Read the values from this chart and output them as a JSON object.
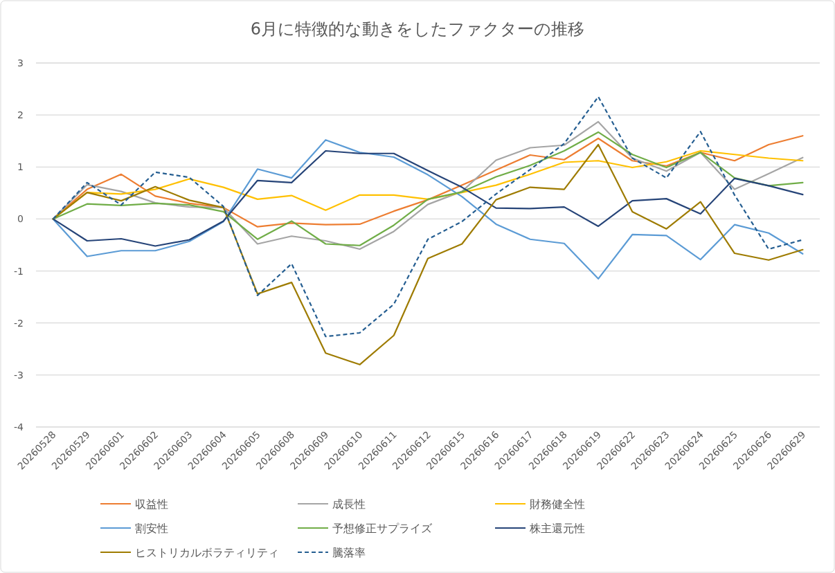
{
  "chart_data": {
    "type": "line",
    "title": "6月に特徴的な動きをしたファクターの推移",
    "categories": [
      "20260528",
      "20260529",
      "20260601",
      "20260602",
      "20260603",
      "20260604",
      "20260605",
      "20260608",
      "20260609",
      "20260610",
      "20260611",
      "20260612",
      "20260615",
      "20260616",
      "20260617",
      "20260618",
      "20260619",
      "20260622",
      "20260623",
      "20260624",
      "20260625",
      "20260626",
      "20260629"
    ],
    "ylim": [
      -4,
      3
    ],
    "yticks": [
      -4,
      -3,
      -2,
      -1,
      0,
      1,
      2,
      3
    ],
    "grid": "y",
    "legend": "bottom",
    "marker": "none",
    "series": [
      {
        "name": "収益性",
        "color": "#ed7d31",
        "values": [
          0,
          0.57,
          0.86,
          0.44,
          0.3,
          0.22,
          -0.15,
          -0.08,
          -0.11,
          -0.1,
          0.15,
          0.37,
          0.65,
          0.94,
          1.23,
          1.14,
          1.55,
          1.12,
          1.02,
          1.28,
          1.12,
          1.43,
          1.6
        ]
      },
      {
        "name": "成長性",
        "color": "#a5a5a5",
        "values": [
          0,
          0.66,
          0.53,
          0.31,
          0.23,
          0.22,
          -0.48,
          -0.33,
          -0.42,
          -0.58,
          -0.24,
          0.28,
          0.53,
          1.13,
          1.37,
          1.42,
          1.87,
          1.17,
          0.92,
          1.28,
          0.57,
          0.87,
          1.18
        ]
      },
      {
        "name": "財務健全性",
        "color": "#ffc000",
        "values": [
          0,
          0.51,
          0.48,
          0.57,
          0.77,
          0.61,
          0.38,
          0.45,
          0.17,
          0.46,
          0.46,
          0.38,
          0.51,
          0.65,
          0.86,
          1.09,
          1.12,
          0.99,
          1.1,
          1.31,
          1.24,
          1.17,
          1.12
        ]
      },
      {
        "name": "割安性",
        "color": "#5b9bd5",
        "values": [
          0,
          -0.72,
          -0.61,
          -0.61,
          -0.43,
          -0.05,
          0.96,
          0.79,
          1.52,
          1.28,
          1.19,
          0.85,
          0.43,
          -0.1,
          -0.39,
          -0.47,
          -1.15,
          -0.3,
          -0.32,
          -0.78,
          -0.11,
          -0.27,
          -0.67
        ]
      },
      {
        "name": "予想修正サプライズ",
        "color": "#70ad47",
        "values": [
          0,
          0.29,
          0.26,
          0.3,
          0.27,
          0.14,
          -0.39,
          -0.04,
          -0.48,
          -0.51,
          -0.12,
          0.38,
          0.52,
          0.81,
          1.03,
          1.31,
          1.67,
          1.24,
          0.99,
          1.28,
          0.79,
          0.64,
          0.7
        ]
      },
      {
        "name": "株主還元性",
        "color": "#264478",
        "values": [
          0,
          -0.42,
          -0.38,
          -0.52,
          -0.4,
          -0.04,
          0.74,
          0.7,
          1.31,
          1.26,
          1.26,
          0.93,
          0.61,
          0.21,
          0.2,
          0.23,
          -0.14,
          0.35,
          0.39,
          0.1,
          0.78,
          0.64,
          0.47
        ]
      },
      {
        "name": "ヒストリカルボラティリティ",
        "color": "#9e7b00",
        "values": [
          0,
          0.51,
          0.35,
          0.62,
          0.36,
          0.22,
          -1.44,
          -1.22,
          -2.58,
          -2.8,
          -2.24,
          -0.76,
          -0.48,
          0.37,
          0.61,
          0.57,
          1.43,
          0.14,
          -0.19,
          0.33,
          -0.66,
          -0.79,
          -0.59
        ]
      },
      {
        "name": "騰落率",
        "color": "#255e91",
        "line_style": "dashed",
        "values": [
          0,
          0.7,
          0.27,
          0.9,
          0.8,
          0.24,
          -1.47,
          -0.86,
          -2.26,
          -2.19,
          -1.64,
          -0.39,
          -0.05,
          0.48,
          0.95,
          1.45,
          2.35,
          1.17,
          0.79,
          1.68,
          0.46,
          -0.58,
          -0.4
        ]
      }
    ]
  }
}
